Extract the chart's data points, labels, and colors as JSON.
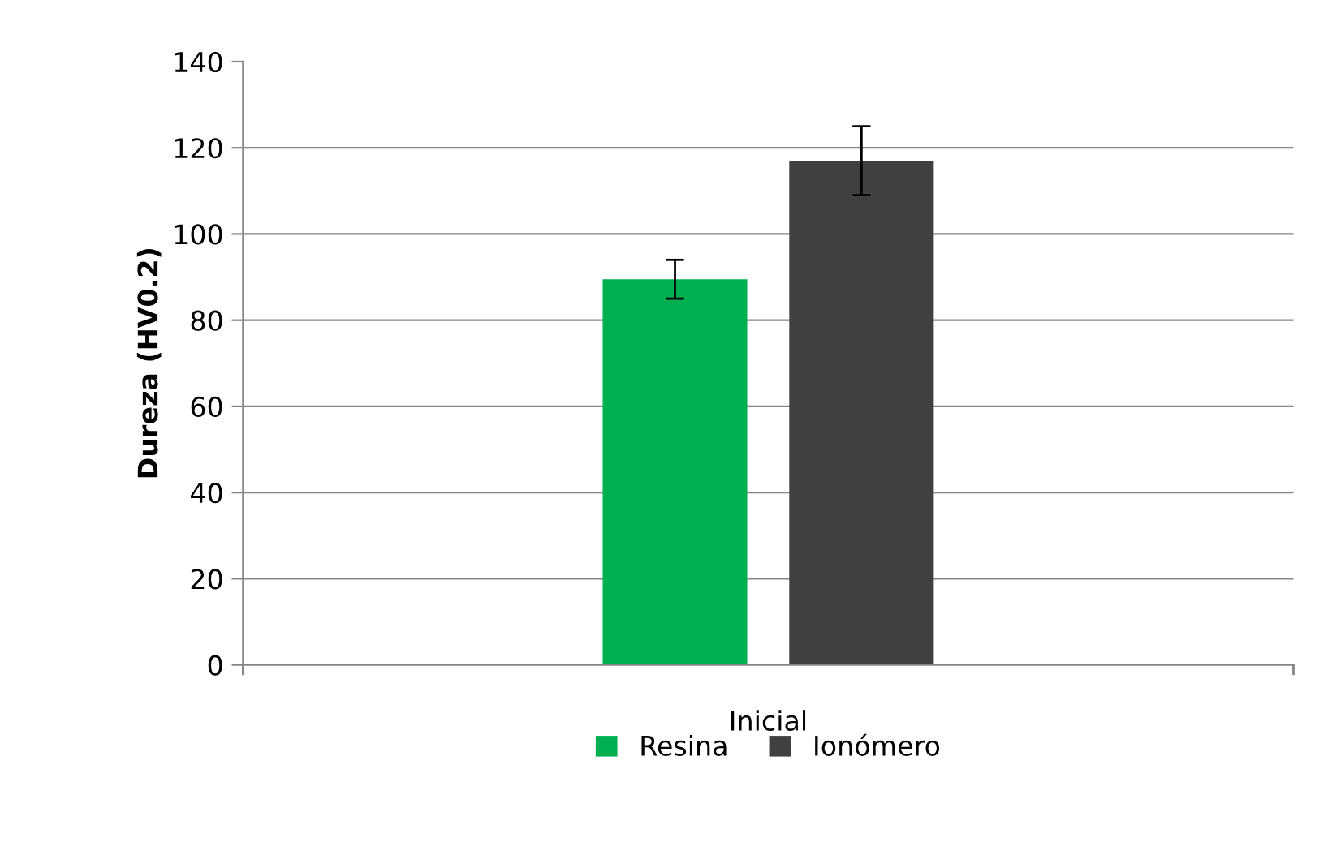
{
  "chart_data": {
    "type": "bar",
    "ylabel": "Dureza (HV0.2)",
    "categories": [
      "Inicial"
    ],
    "series": [
      {
        "name": "Resina",
        "color": "#00b050",
        "values": [
          89.5
        ],
        "errors": [
          4.5
        ]
      },
      {
        "name": "Ionómero",
        "color": "#404040",
        "values": [
          117
        ],
        "errors": [
          8
        ]
      }
    ],
    "ylim": [
      0,
      140
    ],
    "yticks": [
      0,
      20,
      40,
      60,
      80,
      100,
      120,
      140
    ],
    "grid": "y",
    "legend": "bottom"
  }
}
